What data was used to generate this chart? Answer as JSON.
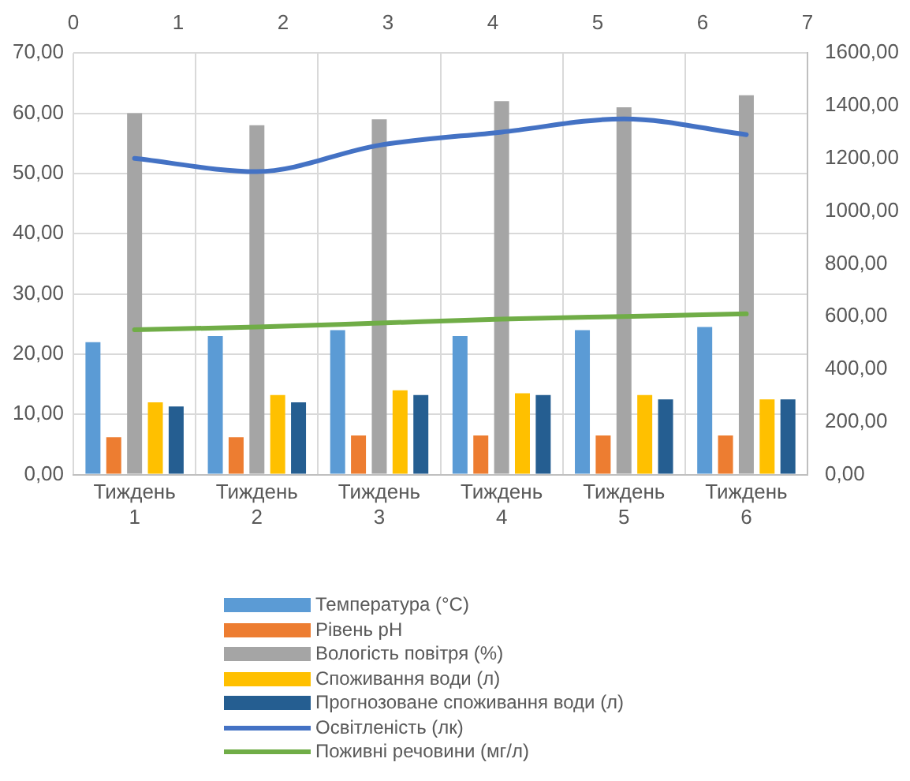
{
  "chart_data": {
    "type": "bar",
    "categories": [
      "Тиждень 1",
      "Тиждень 2",
      "Тиждень 3",
      "Тиждень 4",
      "Тиждень 5",
      "Тиждень 6"
    ],
    "series": [
      {
        "name": "Температура (°C)",
        "color": "#5b9bd5",
        "values": [
          22,
          23,
          24,
          23,
          24,
          24.5
        ]
      },
      {
        "name": "Рівень pH",
        "color": "#ed7d31",
        "values": [
          6.2,
          6.2,
          6.5,
          6.5,
          6.5,
          6.5
        ]
      },
      {
        "name": "Вологість повітря (%)",
        "color": "#a5a5a5",
        "values": [
          60,
          58,
          59,
          62,
          61,
          63
        ]
      },
      {
        "name": "Споживання води (л)",
        "color": "#ffc000",
        "values": [
          12,
          13.2,
          14,
          13.5,
          13.2,
          12.5
        ]
      },
      {
        "name": "Прогнозоване споживання води (л)",
        "color": "#255e91",
        "values": [
          11.3,
          12,
          13.2,
          13.2,
          12.5,
          12.5
        ]
      },
      {
        "name": "Освітленість (лк)",
        "color": "#4472c4",
        "type": "line",
        "axis": "y2",
        "values": [
          1200,
          1150,
          1250,
          1300,
          1350,
          1290
        ]
      },
      {
        "name": "Поживні речовини (мг/л)",
        "color": "#70ad47",
        "type": "line",
        "axis": "y2",
        "values": [
          550,
          560,
          575,
          590,
          600,
          610
        ]
      }
    ],
    "ylim": [
      0,
      70
    ],
    "yticks": [
      {
        "value": 0,
        "label": "0,00"
      },
      {
        "value": 10,
        "label": "10,00"
      },
      {
        "value": 20,
        "label": "20,00"
      },
      {
        "value": 30,
        "label": "30,00"
      },
      {
        "value": 40,
        "label": "40,00"
      },
      {
        "value": 50,
        "label": "50,00"
      },
      {
        "value": 60,
        "label": "60,00"
      },
      {
        "value": 70,
        "label": "70,00"
      }
    ],
    "y2lim": [
      0,
      1600
    ],
    "y2ticks": [
      {
        "value": 0,
        "label": "0,00"
      },
      {
        "value": 200,
        "label": "200,00"
      },
      {
        "value": 400,
        "label": "400,00"
      },
      {
        "value": 600,
        "label": "600,00"
      },
      {
        "value": 800,
        "label": "800,00"
      },
      {
        "value": 1000,
        "label": "1000,00"
      },
      {
        "value": 1200,
        "label": "1200,00"
      },
      {
        "value": 1400,
        "label": "1400,00"
      },
      {
        "value": 1600,
        "label": "1600,00"
      }
    ],
    "x2lim": [
      0,
      7
    ],
    "x2ticks": [
      0,
      1,
      2,
      3,
      4,
      5,
      6,
      7
    ],
    "grid": true,
    "legend": "bottom"
  }
}
